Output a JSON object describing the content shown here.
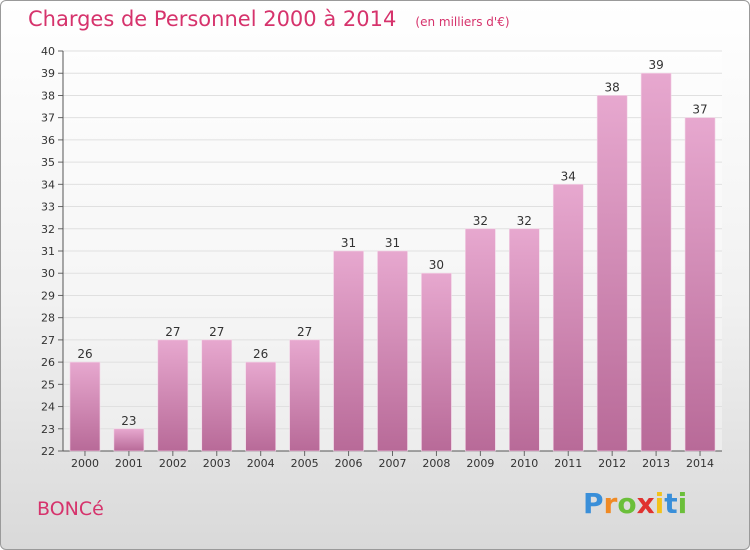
{
  "header": {
    "title": "Charges de Personnel 2000 à 2014",
    "subtitle": "(en milliers d'€)"
  },
  "footer": {
    "town": "BONCé",
    "logo_text": "Proxiti",
    "logo_colors": [
      "#3a8fd9",
      "#f08a24",
      "#6bbf3a",
      "#e0322f",
      "#f2c21b",
      "#3a8fd9",
      "#6bbf3a"
    ]
  },
  "chart_data": {
    "type": "bar",
    "title": "Charges de Personnel 2000 à 2014",
    "subtitle": "(en milliers d'€)",
    "categories": [
      "2000",
      "2001",
      "2002",
      "2003",
      "2004",
      "2005",
      "2006",
      "2007",
      "2008",
      "2009",
      "2010",
      "2011",
      "2012",
      "2013",
      "2014"
    ],
    "values": [
      26,
      23,
      27,
      27,
      26,
      27,
      31,
      31,
      30,
      32,
      32,
      34,
      38,
      39,
      37
    ],
    "yticks": [
      22,
      23,
      24,
      25,
      26,
      27,
      28,
      29,
      30,
      31,
      32,
      33,
      34,
      35,
      36,
      37,
      38,
      39,
      40
    ],
    "ylim": [
      22,
      40
    ],
    "grid": true,
    "colors": {
      "bar_top": "#e7a8cf",
      "bar_bottom": "#b86a98",
      "grid": "#e0e0e0"
    }
  }
}
